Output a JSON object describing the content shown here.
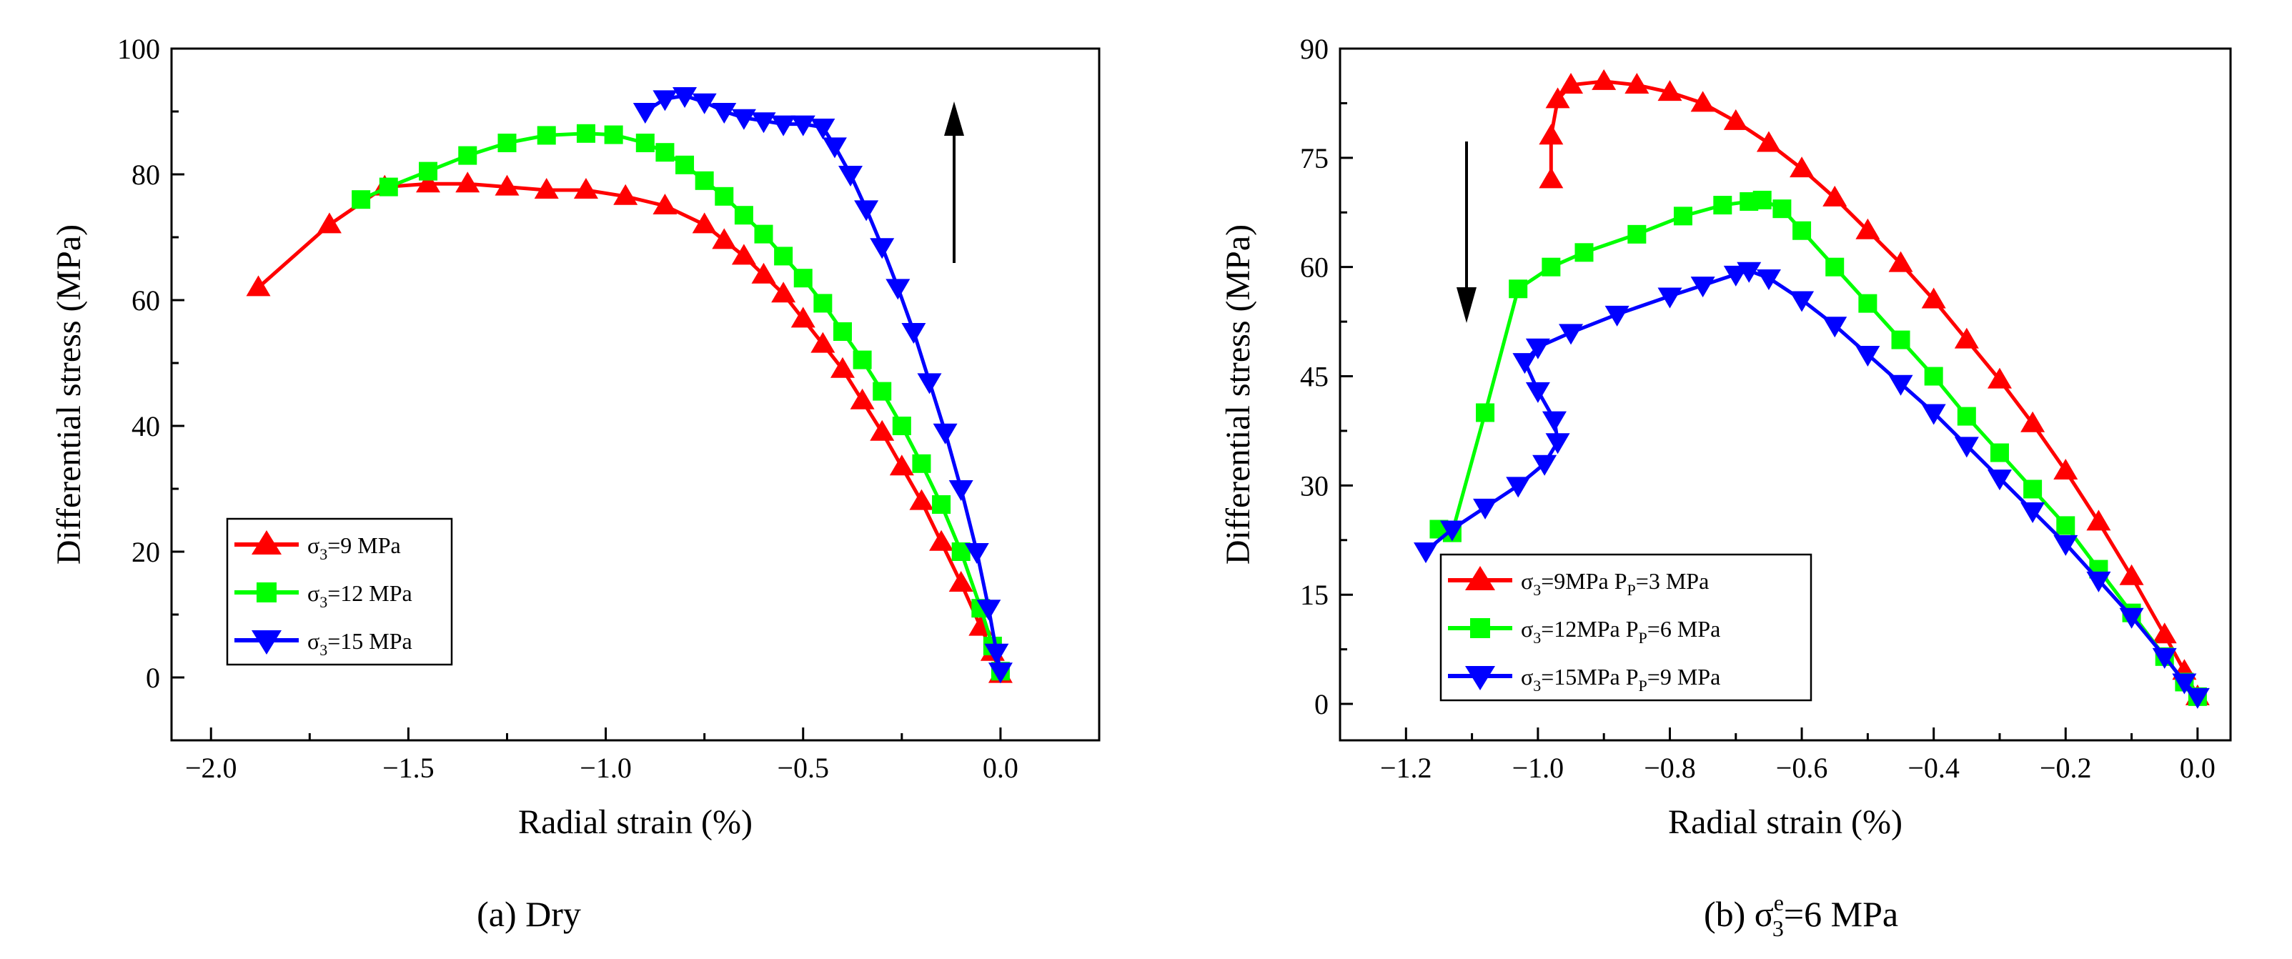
{
  "chart_data": [
    {
      "id": "a",
      "type": "line",
      "caption": "(a) Dry",
      "xlabel": "Radial strain (%)",
      "ylabel": "Differential stress (MPa)",
      "xlim": [
        -2.1,
        0.25
      ],
      "ylim": [
        -10,
        100
      ],
      "xticks": [
        -2.0,
        -1.5,
        -1.0,
        -0.5,
        0.0
      ],
      "xtick_labels": [
        "−2.0",
        "−1.5",
        "−1.0",
        "−0.5",
        "0.0"
      ],
      "yticks": [
        0,
        20,
        40,
        60,
        80,
        100
      ],
      "ytick_labels": [
        "0",
        "20",
        "40",
        "60",
        "80",
        "100"
      ],
      "arrow": "up",
      "legend": [
        "σ",
        "3",
        "=9 MPa",
        "σ",
        "3",
        "=12 MPa",
        "σ",
        "3",
        "=15 MPa"
      ],
      "series": [
        {
          "color": "#ff0000",
          "marker": "triangle-up",
          "x": [
            -1.88,
            -1.7,
            -1.56,
            -1.45,
            -1.35,
            -1.25,
            -1.15,
            -1.05,
            -0.95,
            -0.85,
            -0.75,
            -0.7,
            -0.65,
            -0.6,
            -0.55,
            -0.5,
            -0.45,
            -0.4,
            -0.35,
            -0.3,
            -0.25,
            -0.2,
            -0.15,
            -0.1,
            -0.05,
            -0.02,
            0.0
          ],
          "y": [
            62,
            72,
            78,
            78.5,
            78.5,
            78,
            77.5,
            77.5,
            76.5,
            75,
            72,
            69.5,
            67,
            64,
            61,
            57,
            53,
            49,
            44,
            39,
            33.5,
            28,
            21.5,
            15,
            8,
            4,
            0.5
          ]
        },
        {
          "color": "#00ff00",
          "marker": "square",
          "x": [
            -1.62,
            -1.55,
            -1.45,
            -1.35,
            -1.25,
            -1.15,
            -1.05,
            -0.98,
            -0.9,
            -0.85,
            -0.8,
            -0.75,
            -0.7,
            -0.65,
            -0.6,
            -0.55,
            -0.5,
            -0.45,
            -0.4,
            -0.35,
            -0.3,
            -0.25,
            -0.2,
            -0.15,
            -0.1,
            -0.05,
            -0.02,
            0.0
          ],
          "y": [
            76,
            78,
            80.5,
            83,
            85,
            86.2,
            86.5,
            86.3,
            85,
            83.5,
            81.5,
            79,
            76.5,
            73.5,
            70.5,
            67,
            63.5,
            59.5,
            55,
            50.5,
            45.5,
            40,
            34,
            27.5,
            20,
            11,
            5,
            1
          ]
        },
        {
          "color": "#0000ff",
          "marker": "triangle-down",
          "x": [
            -0.9,
            -0.85,
            -0.8,
            -0.75,
            -0.7,
            -0.65,
            -0.6,
            -0.55,
            -0.5,
            -0.45,
            -0.42,
            -0.38,
            -0.34,
            -0.3,
            -0.26,
            -0.22,
            -0.18,
            -0.14,
            -0.1,
            -0.06,
            -0.03,
            -0.01,
            0.0
          ],
          "y": [
            90,
            92,
            92.5,
            91.5,
            90,
            89,
            88.5,
            88,
            88,
            87.5,
            84.5,
            80,
            74.5,
            68.5,
            62,
            55,
            47,
            39,
            30,
            20,
            11,
            4,
            1
          ]
        }
      ]
    },
    {
      "id": "b",
      "type": "line",
      "caption": "(b)  σ",
      "caption_sup": "e",
      "caption_sub": "3",
      "caption_rest": "=6 MPa",
      "xlabel": "Radial strain (%)",
      "ylabel": "Differential stress (MPa)",
      "xlim": [
        -1.3,
        0.05
      ],
      "ylim": [
        -5,
        90
      ],
      "xticks": [
        -1.2,
        -1.0,
        -0.8,
        -0.6,
        -0.4,
        -0.2,
        0.0
      ],
      "xtick_labels": [
        "−1.2",
        "−1.0",
        "−0.8",
        "−0.6",
        "−0.4",
        "−0.2",
        "0.0"
      ],
      "yticks": [
        0,
        15,
        30,
        45,
        60,
        75,
        90
      ],
      "ytick_labels": [
        "0",
        "15",
        "30",
        "45",
        "60",
        "75",
        "90"
      ],
      "arrow": "down",
      "legend": [
        "σ",
        "3",
        "=9MPa  P",
        "P",
        "=3 MPa",
        "σ",
        "3",
        "=12MPa  P",
        "P",
        "=6 MPa",
        "σ",
        "3",
        "=15MPa  P",
        "P",
        "=9 MPa"
      ],
      "series": [
        {
          "color": "#ff0000",
          "marker": "triangle-up",
          "x": [
            -0.98,
            -0.98,
            -0.97,
            -0.95,
            -0.9,
            -0.85,
            -0.8,
            -0.75,
            -0.7,
            -0.65,
            -0.6,
            -0.55,
            -0.5,
            -0.45,
            -0.4,
            -0.35,
            -0.3,
            -0.25,
            -0.2,
            -0.15,
            -0.1,
            -0.05,
            -0.02,
            0.0
          ],
          "y": [
            72,
            78,
            83,
            85,
            85.5,
            85,
            84,
            82.5,
            80,
            77,
            73.5,
            69.5,
            65,
            60.5,
            55.5,
            50,
            44.5,
            38.5,
            32,
            25,
            17.5,
            9.5,
            4.5,
            1
          ]
        },
        {
          "color": "#00ff00",
          "marker": "square",
          "x": [
            -1.15,
            -1.13,
            -1.08,
            -1.03,
            -0.98,
            -0.93,
            -0.85,
            -0.78,
            -0.72,
            -0.68,
            -0.66,
            -0.63,
            -0.6,
            -0.55,
            -0.5,
            -0.45,
            -0.4,
            -0.35,
            -0.3,
            -0.25,
            -0.2,
            -0.15,
            -0.1,
            -0.05,
            -0.02,
            0.0
          ],
          "y": [
            24,
            23.5,
            40,
            57,
            60,
            62,
            64.5,
            67,
            68.5,
            69,
            69.2,
            68,
            65,
            60,
            55,
            50,
            45,
            39.5,
            34.5,
            29.5,
            24.5,
            18.5,
            12.5,
            6.5,
            3,
            1
          ]
        },
        {
          "color": "#0000ff",
          "marker": "triangle-down",
          "x": [
            -1.17,
            -1.13,
            -1.08,
            -1.03,
            -0.99,
            -0.97,
            -0.975,
            -1.0,
            -1.02,
            -1.0,
            -0.95,
            -0.88,
            -0.8,
            -0.75,
            -0.7,
            -0.68,
            -0.65,
            -0.6,
            -0.55,
            -0.5,
            -0.45,
            -0.4,
            -0.35,
            -0.3,
            -0.25,
            -0.2,
            -0.15,
            -0.1,
            -0.05,
            -0.02,
            0.0
          ],
          "y": [
            21,
            24,
            27,
            30,
            33,
            36,
            39,
            43,
            47,
            49,
            51,
            53.5,
            56,
            57.5,
            59,
            59.5,
            58.5,
            55.5,
            52,
            48,
            44,
            40,
            35.5,
            31,
            26.5,
            22,
            17,
            12,
            6.5,
            3,
            1
          ]
        }
      ]
    }
  ]
}
